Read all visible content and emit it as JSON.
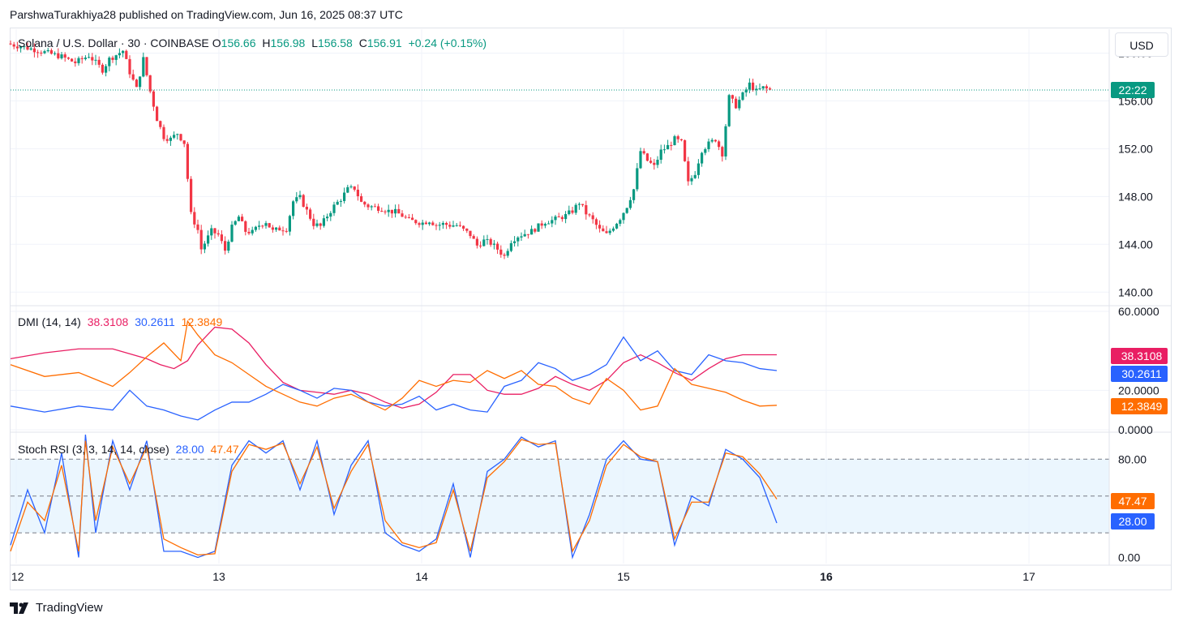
{
  "header": {
    "publisher": "ParshwaTurakhiya28 published on TradingView.com, Jun 16, 2025 08:37 UTC"
  },
  "legend": {
    "symbol": "Solana / U.S. Dollar · 30 · COINBASE",
    "o_label": "O",
    "o_value": "156.66",
    "h_label": "H",
    "h_value": "156.98",
    "l_label": "L",
    "l_value": "156.58",
    "c_label": "C",
    "c_value": "156.91",
    "change": "+0.24 (+0.15%)"
  },
  "dmi_legend": {
    "name": "DMI (14, 14)",
    "adx": "38.3108",
    "plus_di": "30.2611",
    "minus_di": "12.3849"
  },
  "stoch_legend": {
    "name": "Stoch RSI (3, 3, 14, 14, close)",
    "k": "28.00",
    "d": "47.47"
  },
  "currency_button": "USD",
  "branding": {
    "name": "TradingView"
  },
  "colors": {
    "up": "#089981",
    "down": "#f23645",
    "adx": "#e91e63",
    "plus_di": "#2962ff",
    "minus_di": "#ff6d00",
    "stoch_k": "#2962ff",
    "stoch_d": "#ff6d00",
    "band": "#e3f2fd"
  },
  "chart_data": [
    {
      "type": "candlestick",
      "title": "Solana / U.S. Dollar · 30 · COINBASE",
      "ylim": [
        139,
        162
      ],
      "y_ticks": [
        "160.00",
        "156.00",
        "152.00",
        "148.00",
        "144.00",
        "140.00"
      ],
      "x_ticks": [
        "12",
        "13",
        "14",
        "15",
        "16",
        "17"
      ],
      "current_price": 156.91,
      "countdown_label": "22:22",
      "price_path": [
        [
          0,
          160.8
        ],
        [
          8,
          160.3
        ],
        [
          16,
          159.7
        ],
        [
          20,
          159.2
        ],
        [
          24,
          159.8
        ],
        [
          28,
          158.6
        ],
        [
          30,
          159.5
        ],
        [
          34,
          160.2
        ],
        [
          36,
          158.4
        ],
        [
          38,
          157.0
        ],
        [
          40,
          159.5
        ],
        [
          42,
          156.8
        ],
        [
          44,
          154.5
        ],
        [
          46,
          153.0
        ],
        [
          48,
          152.8
        ],
        [
          50,
          153.3
        ],
        [
          52,
          152.5
        ],
        [
          54,
          146.5
        ],
        [
          56,
          145.2
        ],
        [
          57,
          143.6
        ],
        [
          58,
          144.1
        ],
        [
          60,
          145.1
        ],
        [
          62,
          144.8
        ],
        [
          64,
          143.5
        ],
        [
          66,
          145.4
        ],
        [
          68,
          146.3
        ],
        [
          70,
          145.1
        ],
        [
          72,
          145.0
        ],
        [
          74,
          145.6
        ],
        [
          76,
          145.9
        ],
        [
          78,
          145.1
        ],
        [
          80,
          145.3
        ],
        [
          82,
          145.3
        ],
        [
          84,
          147.6
        ],
        [
          86,
          147.9
        ],
        [
          88,
          146.8
        ],
        [
          90,
          145.7
        ],
        [
          92,
          145.5
        ],
        [
          94,
          146.4
        ],
        [
          96,
          147.2
        ],
        [
          98,
          147.8
        ],
        [
          100,
          148.6
        ],
        [
          102,
          148.7
        ],
        [
          104,
          147.5
        ],
        [
          106,
          147.2
        ],
        [
          108,
          147.1
        ],
        [
          110,
          147.0
        ],
        [
          112,
          146.8
        ],
        [
          114,
          146.7
        ],
        [
          116,
          146.4
        ],
        [
          118,
          146.0
        ],
        [
          120,
          145.9
        ],
        [
          122,
          145.8
        ],
        [
          124,
          146.0
        ],
        [
          126,
          145.6
        ],
        [
          128,
          145.7
        ],
        [
          130,
          145.6
        ],
        [
          132,
          145.6
        ],
        [
          134,
          145.2
        ],
        [
          136,
          144.8
        ],
        [
          138,
          143.9
        ],
        [
          140,
          144.3
        ],
        [
          142,
          144.1
        ],
        [
          144,
          143.6
        ],
        [
          146,
          143.0
        ],
        [
          148,
          144.3
        ],
        [
          150,
          144.7
        ],
        [
          152,
          144.9
        ],
        [
          154,
          145.1
        ],
        [
          156,
          145.5
        ],
        [
          158,
          145.9
        ],
        [
          160,
          146.0
        ],
        [
          162,
          146.2
        ],
        [
          164,
          146.4
        ],
        [
          166,
          146.8
        ],
        [
          168,
          147.5
        ],
        [
          170,
          146.6
        ],
        [
          172,
          146.0
        ],
        [
          174,
          145.2
        ],
        [
          176,
          144.8
        ],
        [
          178,
          145.5
        ],
        [
          180,
          146.2
        ],
        [
          182,
          147.2
        ],
        [
          184,
          148.6
        ],
        [
          186,
          151.8
        ],
        [
          188,
          151.0
        ],
        [
          190,
          150.5
        ],
        [
          192,
          151.8
        ],
        [
          194,
          152.2
        ],
        [
          196,
          152.8
        ],
        [
          198,
          152.5
        ],
        [
          200,
          149.1
        ],
        [
          202,
          150.0
        ],
        [
          204,
          151.9
        ],
        [
          206,
          152.4
        ],
        [
          208,
          152.8
        ],
        [
          210,
          151.6
        ],
        [
          212,
          156.3
        ],
        [
          214,
          155.6
        ],
        [
          216,
          156.5
        ],
        [
          218,
          157.4
        ],
        [
          220,
          156.8
        ],
        [
          222,
          157.1
        ],
        [
          224,
          156.91
        ]
      ]
    },
    {
      "type": "line",
      "title": "DMI (14, 14)",
      "ylim": [
        0,
        60
      ],
      "y_ticks": [
        "60.0000",
        "20.0000",
        "0.0000"
      ],
      "series": [
        {
          "name": "ADX",
          "last": "38.3108",
          "x": [
            0,
            10,
            20,
            30,
            40,
            44,
            48,
            52,
            55,
            60,
            65,
            70,
            75,
            80,
            85,
            90,
            95,
            100,
            105,
            110,
            115,
            120,
            125,
            130,
            135,
            140,
            145,
            150,
            155,
            160,
            165,
            170,
            175,
            180,
            185,
            190,
            195,
            200,
            205,
            210,
            215,
            220,
            225
          ],
          "y": [
            36,
            39,
            41,
            41,
            36,
            33,
            31,
            35,
            43,
            52,
            51,
            44,
            33,
            24,
            20,
            19,
            18,
            20,
            18,
            14,
            11,
            13,
            19,
            28,
            28,
            20,
            18,
            18,
            21,
            27,
            23,
            20,
            25,
            34,
            38,
            34,
            29,
            25,
            31,
            36,
            38,
            38,
            38
          ]
        },
        {
          "name": "+DI",
          "last": "30.2611",
          "x": [
            0,
            10,
            20,
            30,
            35,
            40,
            45,
            50,
            55,
            60,
            65,
            70,
            75,
            80,
            85,
            90,
            95,
            100,
            105,
            110,
            115,
            120,
            125,
            130,
            135,
            140,
            145,
            150,
            155,
            160,
            165,
            170,
            175,
            180,
            185,
            190,
            195,
            200,
            205,
            210,
            215,
            220,
            225
          ],
          "y": [
            12,
            9,
            12,
            10,
            20,
            12,
            10,
            7,
            5,
            10,
            14,
            14,
            18,
            23,
            20,
            16,
            21,
            20,
            14,
            12,
            13,
            17,
            10,
            13,
            10,
            9,
            22,
            25,
            34,
            31,
            25,
            28,
            33,
            47,
            35,
            40,
            30,
            28,
            38,
            35,
            34,
            31,
            30
          ]
        },
        {
          "name": "-DI",
          "last": "12.3849",
          "x": [
            0,
            10,
            20,
            30,
            35,
            40,
            45,
            50,
            52,
            55,
            60,
            65,
            70,
            75,
            80,
            85,
            90,
            95,
            100,
            105,
            110,
            115,
            120,
            125,
            130,
            135,
            140,
            145,
            150,
            155,
            160,
            165,
            170,
            175,
            180,
            185,
            190,
            195,
            200,
            205,
            210,
            215,
            220,
            225
          ],
          "y": [
            33,
            27,
            29,
            22,
            29,
            37,
            44,
            35,
            55,
            48,
            38,
            34,
            28,
            22,
            18,
            14,
            12,
            16,
            18,
            14,
            10,
            16,
            25,
            22,
            25,
            24,
            30,
            26,
            30,
            23,
            22,
            16,
            13,
            26,
            20,
            10,
            12,
            31,
            23,
            21,
            19,
            15,
            12,
            12.4
          ]
        }
      ]
    },
    {
      "type": "line",
      "title": "Stoch RSI (3, 3, 14, 14, close)",
      "ylim": [
        -5,
        100
      ],
      "y_ticks": [
        "80.00",
        "0.00"
      ],
      "bands": {
        "upper": 80,
        "middle": 50,
        "lower": 20
      },
      "series": [
        {
          "name": "%K",
          "last": "28.00",
          "x": [
            0,
            5,
            10,
            15,
            20,
            22,
            25,
            30,
            35,
            40,
            45,
            50,
            55,
            60,
            65,
            70,
            75,
            80,
            85,
            90,
            95,
            100,
            105,
            110,
            115,
            120,
            125,
            130,
            135,
            140,
            145,
            150,
            155,
            160,
            165,
            170,
            175,
            180,
            185,
            190,
            195,
            200,
            205,
            210,
            215,
            220,
            225
          ],
          "y": [
            10,
            55,
            20,
            85,
            0,
            100,
            20,
            95,
            55,
            95,
            5,
            5,
            0,
            5,
            75,
            95,
            85,
            95,
            55,
            95,
            35,
            75,
            95,
            20,
            10,
            5,
            15,
            60,
            0,
            70,
            80,
            98,
            90,
            95,
            0,
            35,
            80,
            95,
            80,
            78,
            10,
            50,
            42,
            88,
            80,
            65,
            28
          ]
        },
        {
          "name": "%D",
          "last": "47.47",
          "x": [
            0,
            5,
            10,
            15,
            20,
            22,
            25,
            30,
            35,
            40,
            45,
            50,
            55,
            60,
            65,
            70,
            75,
            80,
            85,
            90,
            95,
            100,
            105,
            110,
            115,
            120,
            125,
            130,
            135,
            140,
            145,
            150,
            155,
            160,
            165,
            170,
            175,
            180,
            185,
            190,
            195,
            200,
            205,
            210,
            215,
            220,
            225
          ],
          "y": [
            5,
            45,
            30,
            75,
            5,
            95,
            30,
            90,
            60,
            90,
            15,
            8,
            2,
            3,
            70,
            92,
            88,
            93,
            60,
            90,
            40,
            70,
            92,
            30,
            12,
            8,
            12,
            55,
            5,
            65,
            78,
            96,
            92,
            93,
            5,
            30,
            75,
            92,
            82,
            78,
            15,
            45,
            45,
            85,
            82,
            68,
            47.47
          ]
        }
      ]
    }
  ]
}
